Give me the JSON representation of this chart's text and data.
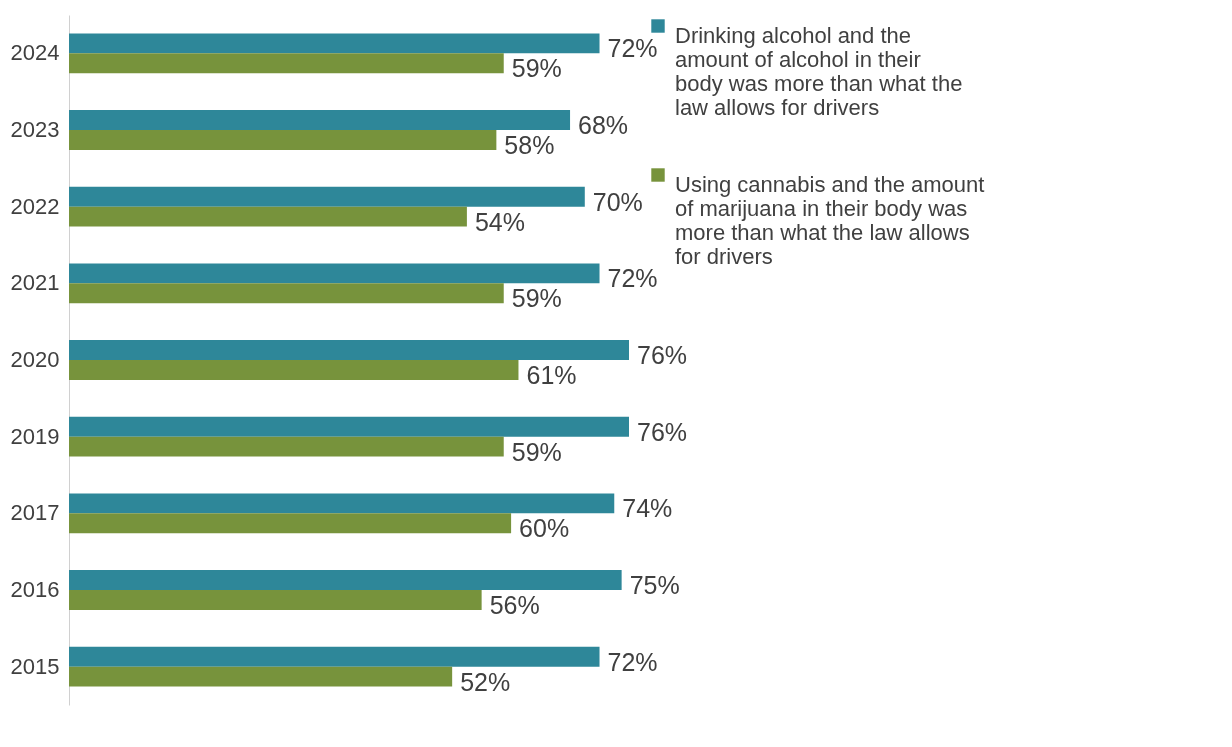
{
  "chart_data": {
    "type": "bar",
    "orientation": "horizontal",
    "categories": [
      "2024",
      "2023",
      "2022",
      "2021",
      "2020",
      "2019",
      "2017",
      "2016",
      "2015"
    ],
    "series": [
      {
        "name": "Drinking alcohol and the amount of alcohol in their body was more than what the law allows for drivers",
        "color": "#2e8799",
        "values": [
          72,
          68,
          70,
          72,
          76,
          76,
          74,
          75,
          72
        ],
        "value_labels": [
          "72%",
          "68%",
          "70%",
          "72%",
          "76%",
          "76%",
          "74%",
          "75%",
          "72%"
        ]
      },
      {
        "name": "Using cannabis and the amount of marijuana in their body was more than what the law allows for drivers",
        "color": "#77933c",
        "values": [
          59,
          58,
          54,
          59,
          61,
          59,
          60,
          56,
          52
        ],
        "value_labels": [
          "59%",
          "58%",
          "54%",
          "59%",
          "61%",
          "59%",
          "60%",
          "56%",
          "52%"
        ]
      }
    ],
    "legend": "right",
    "grid": false,
    "tick_labels": "y"
  }
}
